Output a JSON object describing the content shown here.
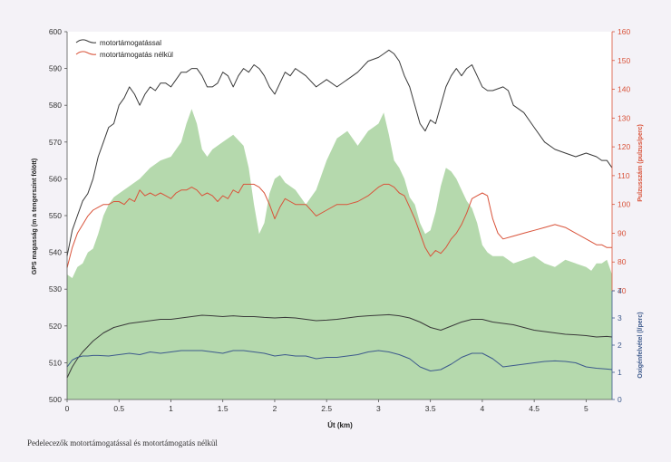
{
  "caption": "Pedelecezők motortámogatással és motortámogatás nélkül",
  "chart_data": {
    "type": "line",
    "x_label": "Út (km)",
    "x_ticks": [
      "0",
      "0.5",
      "1",
      "1.5",
      "2",
      "2.5",
      "3",
      "3.5",
      "4",
      "4.5",
      "5"
    ],
    "xlim": [
      0,
      5.25
    ],
    "left_axis": {
      "label": "GPS magasság (m a tengerszint fölött)",
      "ylim": [
        500,
        600
      ],
      "ticks": [
        "500",
        "510",
        "520",
        "530",
        "540",
        "550",
        "560",
        "570",
        "580",
        "590",
        "600"
      ],
      "color": "#333333"
    },
    "right_upper_axis": {
      "label": "Pulzusszám (pulzus/perc)",
      "ylim": [
        70,
        160
      ],
      "ticks": [
        "70",
        "80",
        "90",
        "100",
        "110",
        "120",
        "130",
        "140",
        "150",
        "160"
      ],
      "color": "#d9533a"
    },
    "right_lower_axis": {
      "label": "Oxigénfelvétel (l/perc)",
      "ylim": [
        0,
        4
      ],
      "ticks": [
        "0",
        "1",
        "2",
        "3",
        "4"
      ],
      "color": "#3d5a8c"
    },
    "legend": {
      "position": "top-left",
      "entries": [
        "motortámogatással",
        "motortámogatás nélkül"
      ]
    },
    "colors": {
      "elevation_fill": "#b5d9ad",
      "with_assist": "#3a3a3a",
      "without_assist": "#d9533a",
      "oxygen_without": "#3d5a8c"
    },
    "elevation": {
      "x": [
        0,
        0.05,
        0.1,
        0.15,
        0.2,
        0.25,
        0.3,
        0.35,
        0.4,
        0.45,
        0.5,
        0.6,
        0.7,
        0.8,
        0.9,
        1,
        1.05,
        1.1,
        1.15,
        1.2,
        1.25,
        1.3,
        1.35,
        1.4,
        1.5,
        1.6,
        1.7,
        1.75,
        1.8,
        1.85,
        1.9,
        1.95,
        2,
        2.05,
        2.1,
        2.2,
        2.3,
        2.4,
        2.5,
        2.6,
        2.7,
        2.8,
        2.9,
        3,
        3.05,
        3.1,
        3.15,
        3.2,
        3.25,
        3.3,
        3.35,
        3.4,
        3.45,
        3.5,
        3.55,
        3.6,
        3.65,
        3.7,
        3.75,
        3.8,
        3.85,
        3.9,
        3.95,
        4,
        4.05,
        4.1,
        4.2,
        4.3,
        4.4,
        4.5,
        4.6,
        4.7,
        4.8,
        4.9,
        5,
        5.05,
        5.1,
        5.15,
        5.2,
        5.25
      ],
      "values": [
        534,
        533,
        536,
        537,
        540,
        541,
        545,
        550,
        553,
        555,
        556,
        558,
        560,
        563,
        565,
        566,
        568,
        570,
        575,
        579,
        575,
        568,
        566,
        568,
        570,
        572,
        569,
        563,
        553,
        545,
        548,
        556,
        560,
        561,
        559,
        557,
        553,
        557,
        565,
        571,
        573,
        569,
        573,
        575,
        578,
        572,
        565,
        563,
        560,
        555,
        553,
        548,
        545,
        546,
        551,
        558,
        563,
        562,
        560,
        557,
        554,
        552,
        548,
        542,
        540,
        539,
        539,
        537,
        538,
        539,
        537,
        536,
        538,
        537,
        536,
        535,
        537,
        537,
        538,
        534
      ]
    },
    "series": [
      {
        "name": "motortámogatással",
        "axis": "left",
        "x": [
          0,
          0.05,
          0.1,
          0.15,
          0.2,
          0.25,
          0.3,
          0.35,
          0.4,
          0.45,
          0.5,
          0.55,
          0.6,
          0.65,
          0.7,
          0.75,
          0.8,
          0.85,
          0.9,
          0.95,
          1,
          1.05,
          1.1,
          1.15,
          1.2,
          1.25,
          1.3,
          1.35,
          1.4,
          1.45,
          1.5,
          1.55,
          1.6,
          1.65,
          1.7,
          1.75,
          1.8,
          1.85,
          1.9,
          1.95,
          2,
          2.05,
          2.1,
          2.15,
          2.2,
          2.3,
          2.4,
          2.5,
          2.6,
          2.7,
          2.8,
          2.9,
          3,
          3.05,
          3.1,
          3.15,
          3.2,
          3.25,
          3.3,
          3.35,
          3.4,
          3.45,
          3.5,
          3.55,
          3.6,
          3.65,
          3.7,
          3.75,
          3.8,
          3.85,
          3.9,
          3.95,
          4,
          4.05,
          4.1,
          4.2,
          4.25,
          4.3,
          4.4,
          4.5,
          4.6,
          4.7,
          4.8,
          4.9,
          5,
          5.1,
          5.15,
          5.2,
          5.25
        ],
        "values": [
          539,
          546,
          550,
          554,
          556,
          560,
          566,
          570,
          574,
          575,
          580,
          582,
          585,
          583,
          580,
          583,
          585,
          584,
          586,
          586,
          585,
          587,
          589,
          589,
          590,
          590,
          588,
          585,
          585,
          586,
          589,
          588,
          585,
          588,
          590,
          589,
          591,
          590,
          588,
          585,
          583,
          586,
          589,
          588,
          590,
          588,
          585,
          587,
          585,
          587,
          589,
          592,
          593,
          594,
          595,
          594,
          592,
          588,
          585,
          580,
          575,
          573,
          576,
          575,
          580,
          585,
          588,
          590,
          588,
          590,
          591,
          588,
          585,
          584,
          584,
          585,
          584,
          580,
          578,
          574,
          570,
          568,
          567,
          566,
          567,
          566,
          565,
          565,
          563
        ]
      },
      {
        "name": "motortámogatás nélkül",
        "axis": "right_upper",
        "x": [
          0,
          0.05,
          0.1,
          0.15,
          0.2,
          0.25,
          0.3,
          0.35,
          0.4,
          0.45,
          0.5,
          0.55,
          0.6,
          0.65,
          0.7,
          0.75,
          0.8,
          0.85,
          0.9,
          0.95,
          1,
          1.05,
          1.1,
          1.15,
          1.2,
          1.25,
          1.3,
          1.35,
          1.4,
          1.45,
          1.5,
          1.55,
          1.6,
          1.65,
          1.7,
          1.75,
          1.8,
          1.85,
          1.9,
          1.95,
          2,
          2.05,
          2.1,
          2.15,
          2.2,
          2.3,
          2.4,
          2.5,
          2.6,
          2.7,
          2.8,
          2.9,
          3,
          3.05,
          3.1,
          3.15,
          3.2,
          3.25,
          3.3,
          3.35,
          3.4,
          3.45,
          3.5,
          3.55,
          3.6,
          3.65,
          3.7,
          3.75,
          3.8,
          3.85,
          3.9,
          3.95,
          4,
          4.05,
          4.1,
          4.15,
          4.2,
          4.3,
          4.4,
          4.5,
          4.6,
          4.7,
          4.8,
          4.9,
          5,
          5.1,
          5.15,
          5.2,
          5.25
        ],
        "values": [
          78,
          85,
          90,
          93,
          96,
          98,
          99,
          100,
          100,
          101,
          101,
          100,
          102,
          101,
          105,
          103,
          104,
          103,
          104,
          103,
          102,
          104,
          105,
          105,
          106,
          105,
          103,
          104,
          103,
          101,
          103,
          102,
          105,
          104,
          107,
          107,
          107,
          106,
          104,
          100,
          95,
          99,
          102,
          101,
          100,
          100,
          96,
          98,
          100,
          100,
          101,
          103,
          106,
          107,
          107,
          106,
          104,
          103,
          99,
          95,
          90,
          85,
          82,
          84,
          83,
          85,
          88,
          90,
          93,
          97,
          102,
          103,
          104,
          103,
          95,
          90,
          88,
          89,
          90,
          91,
          92,
          93,
          92,
          90,
          88,
          86,
          86,
          85,
          85
        ]
      },
      {
        "name": "",
        "axis": "right_lower",
        "x": [
          0,
          0.05,
          0.1,
          0.15,
          0.2,
          0.25,
          0.3,
          0.35,
          0.4,
          0.45,
          0.5,
          0.6,
          0.7,
          0.8,
          0.9,
          1,
          1.1,
          1.2,
          1.3,
          1.4,
          1.5,
          1.6,
          1.7,
          1.8,
          1.9,
          2,
          2.1,
          2.2,
          2.3,
          2.4,
          2.5,
          2.6,
          2.7,
          2.8,
          2.9,
          3,
          3.1,
          3.2,
          3.3,
          3.4,
          3.5,
          3.6,
          3.7,
          3.8,
          3.9,
          4,
          4.1,
          4.2,
          4.3,
          4.4,
          4.5,
          4.6,
          4.7,
          4.8,
          4.9,
          5,
          5.1,
          5.2,
          5.25
        ],
        "values": [
          0.8,
          1.2,
          1.5,
          1.75,
          1.95,
          2.15,
          2.3,
          2.45,
          2.55,
          2.65,
          2.7,
          2.8,
          2.85,
          2.9,
          2.95,
          2.95,
          3.0,
          3.05,
          3.1,
          3.08,
          3.05,
          3.08,
          3.05,
          3.05,
          3.02,
          3.0,
          3.02,
          3.0,
          2.95,
          2.9,
          2.92,
          2.95,
          3.0,
          3.05,
          3.08,
          3.1,
          3.12,
          3.08,
          3.0,
          2.85,
          2.65,
          2.55,
          2.7,
          2.85,
          2.95,
          2.95,
          2.85,
          2.8,
          2.75,
          2.65,
          2.55,
          2.5,
          2.45,
          2.4,
          2.38,
          2.35,
          2.3,
          2.32,
          2.3
        ]
      },
      {
        "name": "",
        "axis": "right_lower",
        "x": [
          0,
          0.05,
          0.1,
          0.15,
          0.2,
          0.25,
          0.3,
          0.4,
          0.5,
          0.6,
          0.7,
          0.8,
          0.9,
          1,
          1.1,
          1.2,
          1.3,
          1.4,
          1.5,
          1.6,
          1.7,
          1.8,
          1.9,
          2,
          2.1,
          2.2,
          2.3,
          2.4,
          2.5,
          2.6,
          2.7,
          2.8,
          2.9,
          3,
          3.1,
          3.2,
          3.3,
          3.4,
          3.5,
          3.6,
          3.7,
          3.8,
          3.9,
          4,
          4.1,
          4.2,
          4.3,
          4.4,
          4.5,
          4.6,
          4.7,
          4.8,
          4.9,
          5,
          5.1,
          5.2,
          5.25
        ],
        "values": [
          1.2,
          1.45,
          1.55,
          1.6,
          1.6,
          1.62,
          1.62,
          1.6,
          1.65,
          1.7,
          1.65,
          1.75,
          1.7,
          1.75,
          1.8,
          1.8,
          1.8,
          1.75,
          1.7,
          1.8,
          1.8,
          1.75,
          1.7,
          1.6,
          1.65,
          1.6,
          1.6,
          1.5,
          1.55,
          1.55,
          1.6,
          1.65,
          1.75,
          1.8,
          1.75,
          1.65,
          1.5,
          1.2,
          1.05,
          1.1,
          1.3,
          1.55,
          1.7,
          1.7,
          1.5,
          1.2,
          1.25,
          1.3,
          1.35,
          1.4,
          1.42,
          1.4,
          1.35,
          1.2,
          1.15,
          1.12,
          1.1
        ]
      }
    ]
  }
}
